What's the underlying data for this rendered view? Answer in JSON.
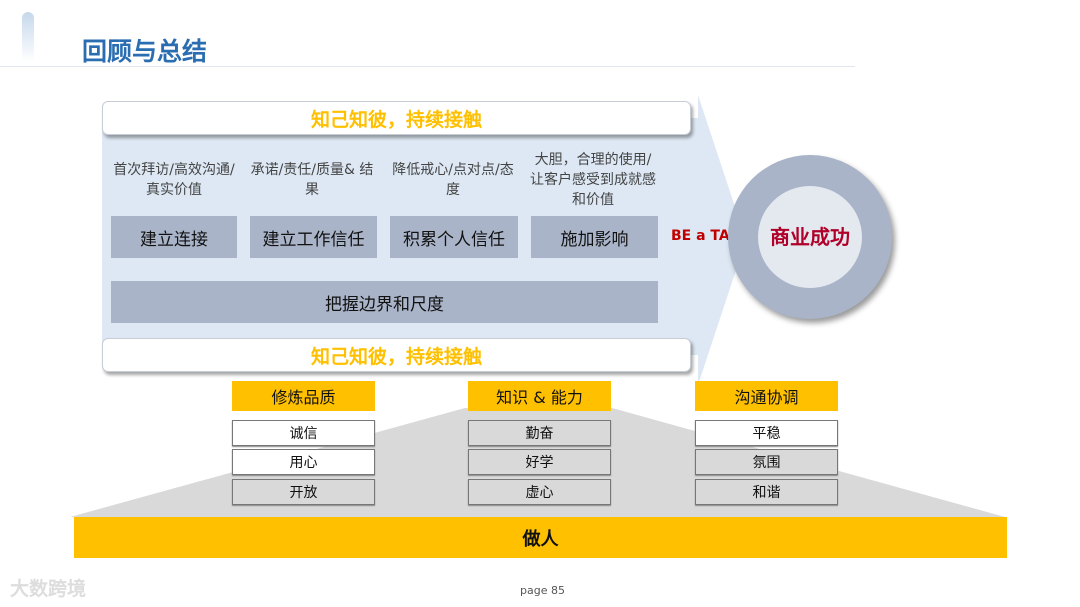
{
  "title": "回顾与总结",
  "band_text": "知己知彼，持续接触",
  "steps": [
    {
      "desc": "首次拜访/高效沟通/真实价值",
      "label": "建立连接"
    },
    {
      "desc": "承诺/责任/质量& 结果",
      "label": "建立工作信任"
    },
    {
      "desc": "降低戒心/点对点/态度",
      "label": "积累个人信任"
    },
    {
      "desc": "大胆，合理的使用/让客户感受到成就感和价值",
      "label": "施加影响"
    }
  ],
  "boundary": "把握边界和尺度",
  "be_a_ta": "BE a TA",
  "goal": "商业成功",
  "columns": [
    {
      "head": "修炼品质",
      "items": [
        "诚信",
        "用心",
        "开放"
      ]
    },
    {
      "head": "知识 & 能力",
      "items": [
        "勤奋",
        "好学",
        "虚心"
      ]
    },
    {
      "head": "沟通协调",
      "items": [
        "平稳",
        "氛围",
        "和谐"
      ]
    }
  ],
  "base": "做人",
  "logo": "大数跨境",
  "page": "page 85",
  "colors": {
    "accent": "#ffc000",
    "title": "#2a6db0",
    "goal": "#b0002a",
    "step": "#a9b4c8",
    "arrow": "#dde8f4"
  }
}
